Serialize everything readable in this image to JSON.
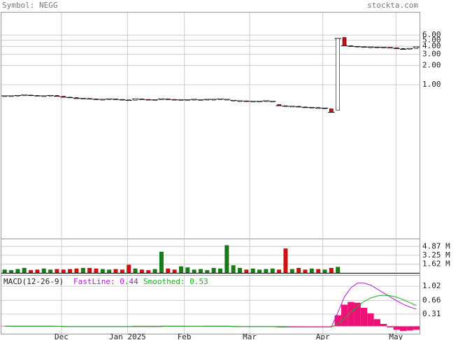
{
  "header": {
    "symbol": "Symbol: NEGG",
    "site": "stockta.com"
  },
  "chart_data": [
    {
      "type": "candlestick",
      "log_scale": true,
      "grid": true,
      "x": [
        0,
        1,
        2,
        3,
        4,
        5,
        6,
        7,
        8,
        9,
        10,
        11,
        12,
        13,
        14,
        15,
        16,
        17,
        18,
        19,
        20,
        21,
        22,
        23,
        24,
        25,
        26,
        27,
        28,
        29,
        30,
        31,
        32,
        33,
        34,
        35,
        36,
        37,
        38,
        39,
        40,
        41,
        42,
        43,
        44,
        45,
        46,
        47,
        48,
        49,
        50,
        51,
        52,
        53,
        54,
        55,
        56,
        57,
        58,
        59,
        60,
        61,
        62,
        63
      ],
      "open": [
        0.66,
        0.67,
        0.67,
        0.68,
        0.69,
        0.68,
        0.67,
        0.67,
        0.68,
        0.66,
        0.64,
        0.63,
        0.61,
        0.61,
        0.6,
        0.59,
        0.59,
        0.6,
        0.59,
        0.58,
        0.57,
        0.6,
        0.59,
        0.58,
        0.58,
        0.6,
        0.59,
        0.58,
        0.58,
        0.59,
        0.58,
        0.59,
        0.59,
        0.6,
        0.59,
        0.57,
        0.56,
        0.56,
        0.55,
        0.55,
        0.56,
        0.55,
        0.49,
        0.47,
        0.46,
        0.46,
        0.45,
        0.44,
        0.44,
        0.43,
        0.42,
        0.4,
        5.5,
        4.1,
        4.0,
        3.95,
        3.9,
        3.9,
        3.85,
        3.85,
        3.8,
        3.7,
        3.6,
        3.7
      ],
      "close": [
        0.67,
        0.67,
        0.68,
        0.69,
        0.68,
        0.67,
        0.67,
        0.68,
        0.66,
        0.64,
        0.63,
        0.61,
        0.61,
        0.6,
        0.59,
        0.59,
        0.6,
        0.59,
        0.58,
        0.57,
        0.6,
        0.59,
        0.58,
        0.58,
        0.6,
        0.59,
        0.58,
        0.58,
        0.58,
        0.59,
        0.58,
        0.59,
        0.59,
        0.6,
        0.59,
        0.57,
        0.56,
        0.55,
        0.55,
        0.55,
        0.56,
        0.55,
        0.47,
        0.46,
        0.46,
        0.45,
        0.44,
        0.44,
        0.43,
        0.43,
        0.37,
        5.3,
        4.1,
        4.0,
        3.95,
        3.9,
        3.9,
        3.85,
        3.85,
        3.8,
        3.7,
        3.6,
        3.7,
        3.9
      ],
      "up_color": "#ffffff",
      "down_color": "#cc1111",
      "xlim": [
        0,
        64
      ],
      "ylim": [
        0.004,
        13.5
      ],
      "yticks": [
        {
          "value": 6,
          "label": "6.00"
        },
        {
          "value": 5,
          "label": "5.00"
        },
        {
          "value": 4,
          "label": "4.00"
        },
        {
          "value": 3,
          "label": "3.00"
        },
        {
          "value": 2,
          "label": "2.00"
        },
        {
          "value": 1,
          "label": "1.00"
        }
      ]
    },
    {
      "type": "bar",
      "grid": true,
      "values": [
        0.6,
        0.5,
        0.7,
        0.9,
        0.5,
        0.6,
        0.8,
        0.6,
        0.7,
        0.6,
        0.7,
        0.8,
        0.9,
        0.9,
        0.8,
        0.7,
        0.6,
        0.7,
        0.6,
        1.5,
        0.8,
        0.6,
        0.5,
        0.7,
        3.9,
        0.8,
        0.6,
        1.2,
        1.0,
        0.6,
        0.7,
        0.5,
        0.9,
        0.8,
        5.1,
        1.4,
        0.9,
        0.6,
        0.8,
        0.6,
        0.7,
        0.8,
        0.6,
        4.5,
        0.7,
        0.9,
        0.6,
        0.8,
        0.7,
        0.6,
        0.9,
        1.1,
        0.0,
        0.0,
        0.0,
        0.0,
        0.0,
        0.0,
        0.0,
        0.0,
        0.0,
        0.0,
        0.0,
        0.0
      ],
      "up_color": "#1a7a1a",
      "down_color": "#cc1111",
      "ylim": [
        0,
        6.2
      ],
      "yticks": [
        {
          "value": 4.87,
          "label": "4.87 M"
        },
        {
          "value": 3.25,
          "label": "3.25 M"
        },
        {
          "value": 1.62,
          "label": "1.62 M"
        }
      ]
    },
    {
      "type": "macd",
      "grid": true,
      "title": "MACD(12-26-9)",
      "series": [
        {
          "name": "FastLine: 0.44",
          "color": "#aa22cc",
          "values": [
            0,
            0,
            0,
            0,
            0,
            0,
            0,
            0,
            0,
            -0.01,
            -0.01,
            -0.01,
            -0.01,
            -0.01,
            -0.01,
            -0.01,
            -0.01,
            -0.01,
            -0.01,
            -0.01,
            -0.01,
            -0.01,
            -0.01,
            -0.01,
            0,
            0,
            0,
            0,
            0,
            0,
            0,
            0,
            0,
            0,
            0,
            -0.01,
            -0.01,
            -0.01,
            -0.01,
            -0.01,
            -0.01,
            -0.01,
            -0.02,
            -0.02,
            -0.02,
            -0.02,
            -0.02,
            -0.02,
            -0.02,
            -0.02,
            -0.02,
            0.35,
            0.75,
            0.98,
            1.1,
            1.1,
            1.05,
            0.95,
            0.85,
            0.75,
            0.65,
            0.56,
            0.49,
            0.44
          ]
        },
        {
          "name": "Smoothed: 0.53",
          "color": "#22aa22",
          "values": [
            0,
            0,
            0,
            0,
            0,
            0,
            0,
            0,
            0,
            0,
            -0.01,
            -0.01,
            -0.01,
            -0.01,
            -0.01,
            -0.01,
            -0.01,
            -0.01,
            -0.01,
            -0.01,
            -0.01,
            -0.01,
            -0.01,
            -0.01,
            -0.01,
            0,
            0,
            0,
            0,
            0,
            0,
            0,
            0,
            0,
            0,
            0,
            -0.01,
            -0.01,
            -0.01,
            -0.01,
            -0.01,
            -0.01,
            -0.01,
            -0.01,
            -0.02,
            -0.02,
            -0.02,
            -0.02,
            -0.02,
            -0.02,
            -0.02,
            0.07,
            0.2,
            0.36,
            0.5,
            0.63,
            0.72,
            0.77,
            0.79,
            0.78,
            0.74,
            0.68,
            0.6,
            0.53
          ]
        }
      ],
      "histogram": {
        "color": "#ee1177",
        "values": [
          0.01,
          0.01,
          0.01,
          0.01,
          0.01,
          0.01,
          0.01,
          0.01,
          0,
          -0.01,
          -0.01,
          0,
          0,
          0,
          0,
          0,
          0,
          0,
          0,
          0,
          0.01,
          0.01,
          0.01,
          0.01,
          0.01,
          0.01,
          0.01,
          0.01,
          0,
          0,
          0,
          0.01,
          0.01,
          0.01,
          0.01,
          0,
          0,
          0,
          -0.01,
          -0.01,
          0,
          0,
          -0.01,
          -0.01,
          -0.01,
          -0.01,
          0,
          0,
          0,
          0,
          0,
          0.28,
          0.55,
          0.62,
          0.6,
          0.47,
          0.33,
          0.18,
          0.06,
          -0.03,
          -0.09,
          -0.12,
          -0.11,
          -0.09
        ]
      },
      "ylim": [
        -0.19,
        1.29
      ],
      "yticks": [
        1.02,
        0.66,
        0.31
      ],
      "xticks": [
        {
          "value": 8.7,
          "label": "Dec"
        },
        {
          "value": 18.8,
          "label": "Jan 2025"
        },
        {
          "value": 27.5,
          "label": "Feb"
        },
        {
          "value": 37.5,
          "label": "Mar"
        },
        {
          "value": 48.7,
          "label": "Apr"
        },
        {
          "value": 59.9,
          "label": "May"
        }
      ]
    }
  ]
}
